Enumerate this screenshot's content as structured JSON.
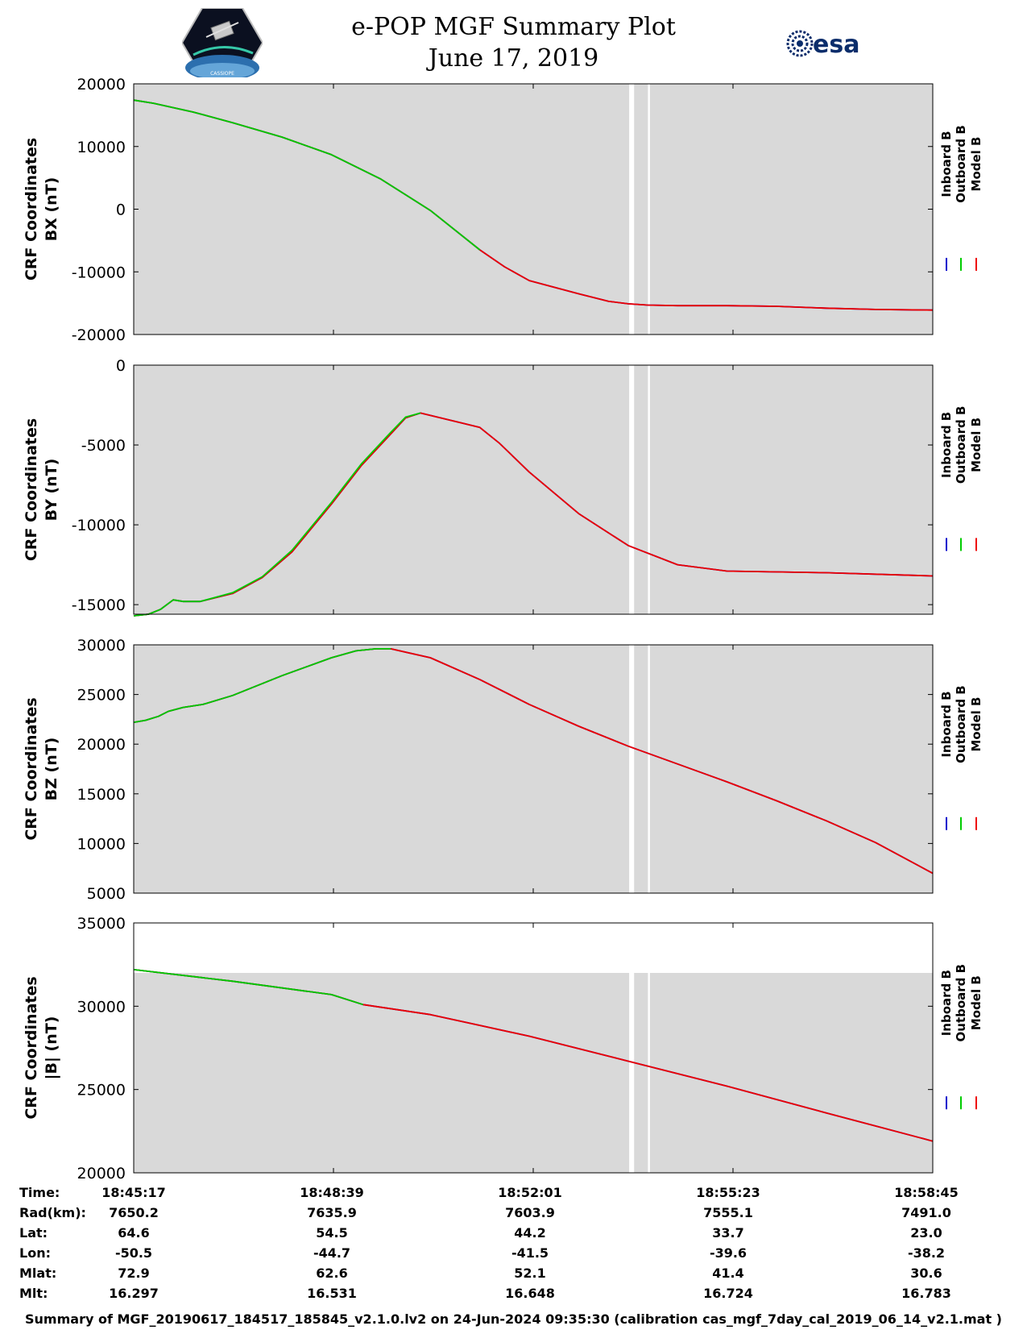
{
  "header": {
    "title": "e-POP MGF Summary Plot",
    "date": "June 17, 2019",
    "left_logo": "CASSIOPE",
    "right_logo": "esa"
  },
  "legend": [
    "Inboard B",
    "Outboard B",
    "Model B"
  ],
  "colors": {
    "inboard": "#0000cc",
    "outboard": "#00cc00",
    "model": "#ee0000",
    "plot_bg": "#d9d9d9",
    "gap": "#ffffff"
  },
  "chart_data": [
    {
      "type": "line",
      "ylabel_line1": "CRF Coordinates",
      "ylabel_line2": "BX (nT)",
      "ylim": [
        -20000,
        20000
      ],
      "yticks": [
        20000,
        10000,
        0,
        -10000,
        -20000
      ],
      "x_range_s": [
        0,
        808
      ],
      "gray_range": [
        -20000,
        20000
      ],
      "gaps_s": [
        [
          501,
          506
        ],
        [
          520,
          522
        ]
      ],
      "series": [
        {
          "name": "Inboard B",
          "x": [
            0,
            20,
            60,
            100,
            150,
            200,
            250,
            300,
            350,
            375,
            400,
            450,
            480,
            500,
            520,
            550,
            600,
            650,
            700,
            750,
            808
          ],
          "values": [
            17400,
            16900,
            15500,
            13800,
            11500,
            8700,
            4800,
            -200,
            -6500,
            -9200,
            -11400,
            -13500,
            -14700,
            -15100,
            -15300,
            -15400,
            -15400,
            -15500,
            -15800,
            -16000,
            -16100
          ]
        },
        {
          "name": "Model B",
          "x": [
            0,
            20,
            60,
            100,
            150,
            200,
            250,
            300,
            350,
            375,
            400,
            450,
            480,
            500,
            520,
            550,
            600,
            650,
            700,
            750,
            808
          ],
          "values": [
            17400,
            16900,
            15500,
            13800,
            11500,
            8700,
            4800,
            -200,
            -6500,
            -9200,
            -11400,
            -13500,
            -14700,
            -15100,
            -15300,
            -15400,
            -15400,
            -15500,
            -15800,
            -16000,
            -16100
          ]
        },
        {
          "name": "Outboard B",
          "x": [
            0,
            20,
            60,
            100,
            150,
            200,
            250,
            300,
            350
          ],
          "values": [
            17400,
            16900,
            15500,
            13800,
            11500,
            8700,
            4800,
            -200,
            -6500
          ]
        }
      ]
    },
    {
      "type": "line",
      "ylabel_line1": "CRF Coordinates",
      "ylabel_line2": "BY (nT)",
      "ylim": [
        -15600,
        0
      ],
      "yticks": [
        0,
        -5000,
        -10000,
        -15000
      ],
      "x_range_s": [
        0,
        808
      ],
      "gray_range": [
        -15600,
        0
      ],
      "gaps_s": [
        [
          501,
          506
        ],
        [
          520,
          522
        ]
      ],
      "series": [
        {
          "name": "Inboard B",
          "x": [
            0,
            15,
            27,
            40,
            50,
            67,
            100,
            130,
            160,
            200,
            230,
            260,
            275,
            290,
            330,
            350,
            370,
            400,
            450,
            500,
            550,
            600,
            700,
            808
          ],
          "values": [
            -15700,
            -15600,
            -15300,
            -14700,
            -14800,
            -14800,
            -14300,
            -13300,
            -11700,
            -8700,
            -6300,
            -4300,
            -3300,
            -3000,
            -3600,
            -3900,
            -4900,
            -6700,
            -9300,
            -11300,
            -12500,
            -12900,
            -13000,
            -13200
          ]
        },
        {
          "name": "Model B",
          "x": [
            0,
            15,
            27,
            40,
            50,
            67,
            100,
            130,
            160,
            200,
            230,
            260,
            275,
            290,
            330,
            350,
            370,
            400,
            450,
            500,
            550,
            600,
            700,
            808
          ],
          "values": [
            -15700,
            -15600,
            -15300,
            -14700,
            -14800,
            -14800,
            -14300,
            -13300,
            -11700,
            -8700,
            -6300,
            -4300,
            -3300,
            -3000,
            -3600,
            -3900,
            -4900,
            -6700,
            -9300,
            -11300,
            -12500,
            -12900,
            -13000,
            -13200
          ]
        },
        {
          "name": "Outboard B",
          "x": [
            0,
            15,
            27,
            40,
            50,
            67,
            100,
            130,
            160,
            200,
            230,
            260,
            275,
            290
          ],
          "values": [
            -15700,
            -15600,
            -15300,
            -14700,
            -14800,
            -14800,
            -14250,
            -13250,
            -11600,
            -8600,
            -6200,
            -4200,
            -3250,
            -3000
          ]
        }
      ]
    },
    {
      "type": "line",
      "ylabel_line1": "CRF Coordinates",
      "ylabel_line2": "BZ (nT)",
      "ylim": [
        5000,
        30000
      ],
      "yticks": [
        30000,
        25000,
        20000,
        15000,
        10000,
        5000
      ],
      "x_range_s": [
        0,
        808
      ],
      "gray_range": [
        5000,
        30000
      ],
      "gaps_s": [
        [
          501,
          506
        ],
        [
          520,
          522
        ]
      ],
      "series": [
        {
          "name": "Inboard B",
          "x": [
            0,
            12,
            25,
            35,
            50,
            70,
            100,
            150,
            200,
            225,
            245,
            260,
            300,
            350,
            400,
            450,
            500,
            550,
            600,
            650,
            700,
            750,
            808
          ],
          "values": [
            22200,
            22400,
            22800,
            23300,
            23700,
            24000,
            24900,
            26900,
            28700,
            29400,
            29600,
            29600,
            28700,
            26500,
            24000,
            21800,
            19800,
            18000,
            16200,
            14300,
            12300,
            10100,
            7000
          ]
        },
        {
          "name": "Model B",
          "x": [
            0,
            12,
            25,
            35,
            50,
            70,
            100,
            150,
            200,
            225,
            245,
            260,
            300,
            350,
            400,
            450,
            500,
            550,
            600,
            650,
            700,
            750,
            808
          ],
          "values": [
            22200,
            22400,
            22800,
            23300,
            23700,
            24000,
            24900,
            26900,
            28700,
            29400,
            29600,
            29600,
            28700,
            26500,
            24000,
            21800,
            19800,
            18000,
            16200,
            14300,
            12300,
            10100,
            7000
          ]
        },
        {
          "name": "Outboard B",
          "x": [
            0,
            12,
            25,
            35,
            50,
            70,
            100,
            150,
            200,
            225,
            245,
            260
          ],
          "values": [
            22200,
            22400,
            22800,
            23300,
            23700,
            24000,
            24900,
            26900,
            28700,
            29400,
            29600,
            29600
          ]
        }
      ]
    },
    {
      "type": "line",
      "ylabel_line1": "CRF Coordinates",
      "ylabel_line2": "|B| (nT)",
      "ylim": [
        20000,
        35000
      ],
      "yticks": [
        35000,
        30000,
        25000,
        20000
      ],
      "x_range_s": [
        0,
        808
      ],
      "gray_range": [
        20000,
        32000
      ],
      "gaps_s": [
        [
          501,
          506
        ],
        [
          520,
          522
        ]
      ],
      "series": [
        {
          "name": "Inboard B",
          "x": [
            0,
            100,
            200,
            232,
            300,
            400,
            500,
            600,
            700,
            808
          ],
          "values": [
            32200,
            31500,
            30700,
            30100,
            29500,
            28200,
            26700,
            25200,
            23600,
            21900
          ]
        },
        {
          "name": "Model B",
          "x": [
            0,
            100,
            200,
            232,
            300,
            400,
            500,
            600,
            700,
            808
          ],
          "values": [
            32200,
            31500,
            30700,
            30100,
            29500,
            28200,
            26700,
            25200,
            23600,
            21900
          ]
        },
        {
          "name": "Outboard B",
          "x": [
            0,
            100,
            200,
            232
          ],
          "values": [
            32200,
            31500,
            30700,
            30100
          ]
        }
      ]
    }
  ],
  "table": {
    "row_labels": [
      "Time:",
      "Rad(km):",
      "Lat:",
      "Lon:",
      "Mlat:",
      "Mlt:"
    ],
    "columns": [
      {
        "values": [
          "18:45:17",
          "7650.2",
          "64.6",
          "-50.5",
          "72.9",
          "16.297"
        ]
      },
      {
        "values": [
          "18:48:39",
          "7635.9",
          "54.5",
          "-44.7",
          "62.6",
          "16.531"
        ]
      },
      {
        "values": [
          "18:52:01",
          "7603.9",
          "44.2",
          "-41.5",
          "52.1",
          "16.648"
        ]
      },
      {
        "values": [
          "18:55:23",
          "7555.1",
          "33.7",
          "-39.6",
          "41.4",
          "16.724"
        ]
      },
      {
        "values": [
          "18:58:45",
          "7491.0",
          "23.0",
          "-38.2",
          "30.6",
          "16.783"
        ]
      }
    ]
  },
  "footer": "Summary of MGF_20190617_184517_185845_v2.1.0.lv2 on 24-Jun-2024 09:35:30 (calibration cas_mgf_7day_cal_2019_06_14_v2.1.mat )"
}
